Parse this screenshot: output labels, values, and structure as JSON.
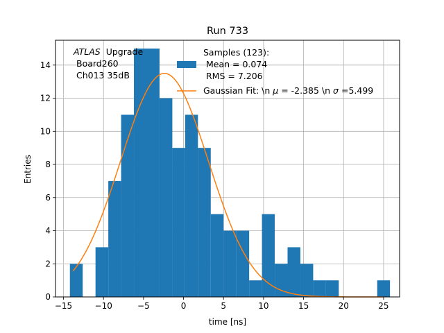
{
  "chart_data": {
    "type": "histogram",
    "title": "Run 733",
    "xlabel": "time [ns]",
    "ylabel": "Entries",
    "xlim": [
      -16,
      27
    ],
    "ylim": [
      0,
      15.5
    ],
    "xticks": [
      -15,
      -10,
      -5,
      0,
      5,
      10,
      15,
      20,
      25
    ],
    "yticks": [
      0,
      2,
      4,
      6,
      8,
      10,
      12,
      14
    ],
    "grid": true,
    "bar_color": "#1f77b4",
    "fit_color": "#ff7f0e",
    "bin_edges": [
      -14.2,
      -12.6,
      -11.0,
      -9.4,
      -7.8,
      -6.2,
      -4.6,
      -3.0,
      -1.4,
      0.2,
      1.8,
      3.4,
      5.0,
      6.6,
      8.2,
      9.8,
      11.4,
      13.0,
      14.6,
      16.2,
      17.8,
      19.4,
      21.0,
      22.6,
      24.2,
      25.8
    ],
    "counts": [
      2,
      0,
      3,
      7,
      11,
      15,
      15,
      12,
      9,
      11,
      9,
      5,
      4,
      4,
      1,
      5,
      2,
      3,
      2,
      1,
      1,
      0,
      0,
      0,
      1
    ],
    "fit": {
      "label": "Gaussian Fit: \\n $\\mu$ = -2.385 \\n $\\sigma$=5.499",
      "label_prefix": "Gaussian Fit: \\n ",
      "mu_symbol": "μ",
      "mu_text": " = -2.385 \\n ",
      "sigma_symbol": "σ",
      "sigma_text": "=5.499",
      "mu": -2.385,
      "sigma": 5.499,
      "amplitude": 13.5,
      "x_range": [
        -13.8,
        25.0
      ]
    },
    "legend": {
      "location": "top-right",
      "samples_title": "Samples (123):",
      "samples_mean": "Mean = 0.074",
      "samples_rms": "RMS = 7.206"
    },
    "annotation": {
      "atlas": "ATLAS",
      "upgrade": "Upgrade",
      "board": "Board260",
      "channel": "Ch013 35dB"
    }
  }
}
